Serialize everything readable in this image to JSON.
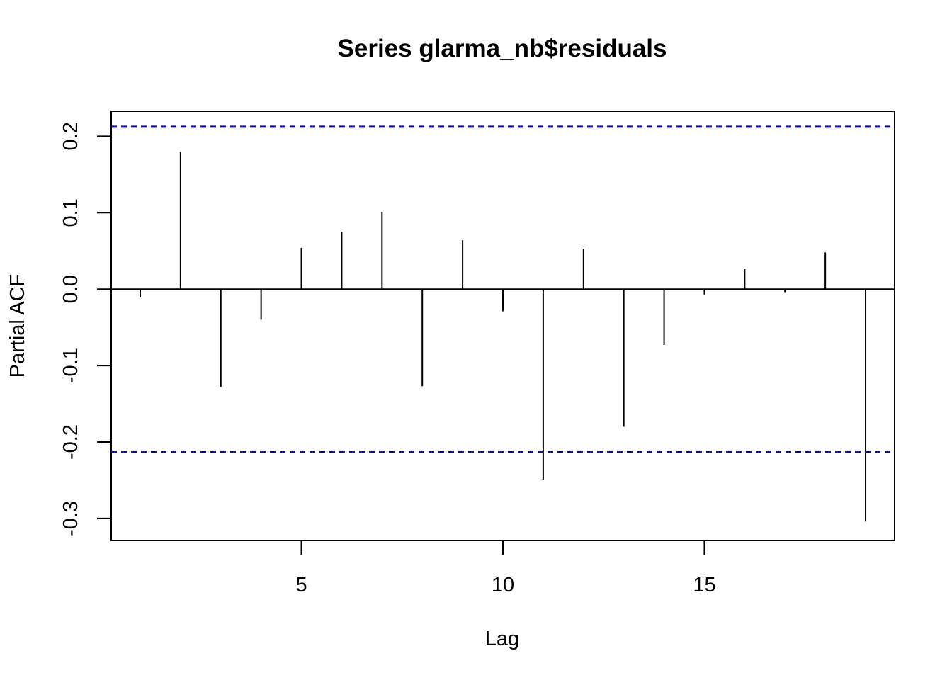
{
  "chart_data": {
    "type": "bar",
    "title": "Series  glarma_nb$residuals",
    "xlabel": "Lag",
    "ylabel": "Partial ACF",
    "xlim": [
      0.28,
      19.72
    ],
    "ylim": [
      -0.3288,
      0.2328
    ],
    "x_ticks": [
      5,
      10,
      15
    ],
    "y_ticks": [
      -0.3,
      -0.2,
      -0.1,
      0.0,
      0.1,
      0.2
    ],
    "x_tick_labels": [
      "5",
      "10",
      "15"
    ],
    "y_tick_labels": [
      "-0.3",
      "-0.2",
      "-0.1",
      "0.0",
      "0.1",
      "0.2"
    ],
    "series": [
      {
        "x": [
          1,
          2,
          3,
          4,
          5,
          6,
          7,
          8,
          9,
          10,
          11,
          12,
          13,
          14,
          15,
          16,
          17,
          18,
          19
        ],
        "values": [
          -0.011,
          0.179,
          -0.128,
          -0.04,
          0.054,
          0.075,
          0.101,
          -0.127,
          0.064,
          -0.029,
          -0.249,
          0.053,
          -0.18,
          -0.073,
          -0.007,
          0.026,
          -0.004,
          0.048,
          -0.304
        ],
        "color": "#000000"
      }
    ],
    "confidence_bound": 0.213,
    "confidence_color": "#0000ff",
    "grid": false,
    "legend": "none"
  }
}
